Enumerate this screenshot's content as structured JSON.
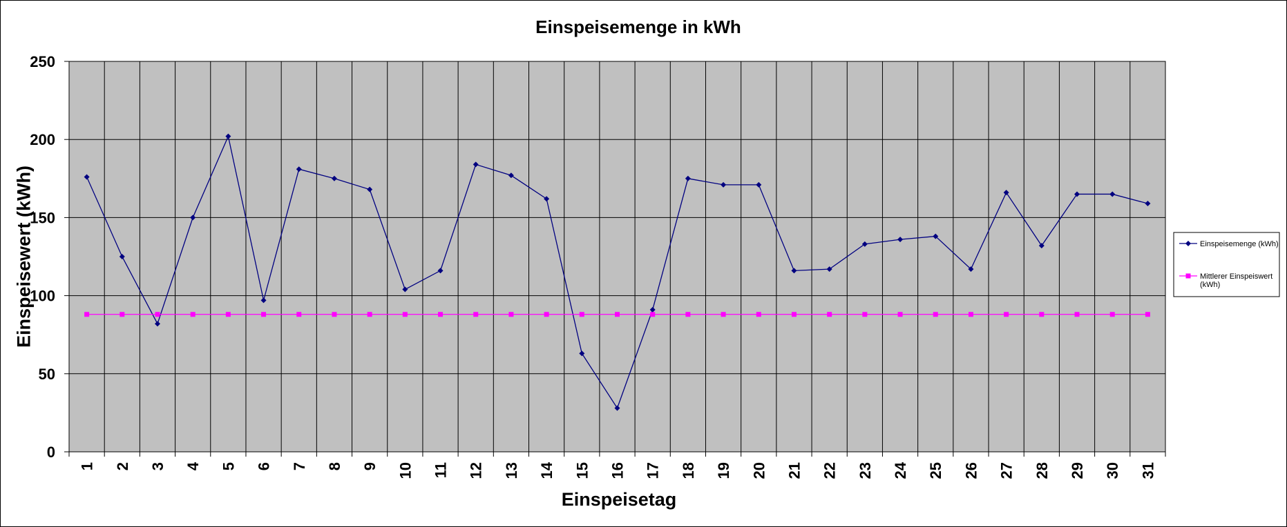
{
  "chart_data": {
    "type": "line",
    "title": "Einspeisemenge in kWh",
    "xlabel": "Einspeisetag",
    "ylabel": "Einspeisewert  (kWh)",
    "categories": [
      "1",
      "2",
      "3",
      "4",
      "5",
      "6",
      "7",
      "8",
      "9",
      "10",
      "11",
      "12",
      "13",
      "14",
      "15",
      "16",
      "17",
      "18",
      "19",
      "20",
      "21",
      "22",
      "23",
      "24",
      "25",
      "26",
      "27",
      "28",
      "29",
      "30",
      "31"
    ],
    "ylim": [
      0,
      250
    ],
    "yticks": [
      "0",
      "50",
      "100",
      "150",
      "200",
      "250"
    ],
    "grid": true,
    "legend_position": "right",
    "series": [
      {
        "name": "Einspeisemenge (kWh)",
        "legend_lines": [
          "Einspeisemenge (kWh)"
        ],
        "color": "#000080",
        "marker": "diamond",
        "values": [
          176,
          125,
          82,
          150,
          202,
          97,
          181,
          175,
          168,
          104,
          116,
          184,
          177,
          162,
          63,
          28,
          91,
          175,
          171,
          171,
          116,
          117,
          133,
          136,
          138,
          117,
          166,
          132,
          165,
          165,
          159
        ]
      },
      {
        "name": "Mittlerer Einspeiswert (kWh)",
        "legend_lines": [
          "Mittlerer Einspeiswert",
          "(kWh)"
        ],
        "color": "#FF00FF",
        "marker": "square",
        "values": [
          88,
          88,
          88,
          88,
          88,
          88,
          88,
          88,
          88,
          88,
          88,
          88,
          88,
          88,
          88,
          88,
          88,
          88,
          88,
          88,
          88,
          88,
          88,
          88,
          88,
          88,
          88,
          88,
          88,
          88,
          88
        ]
      }
    ],
    "plot_background": "#C0C0C0",
    "gridline_color": "#000000"
  }
}
